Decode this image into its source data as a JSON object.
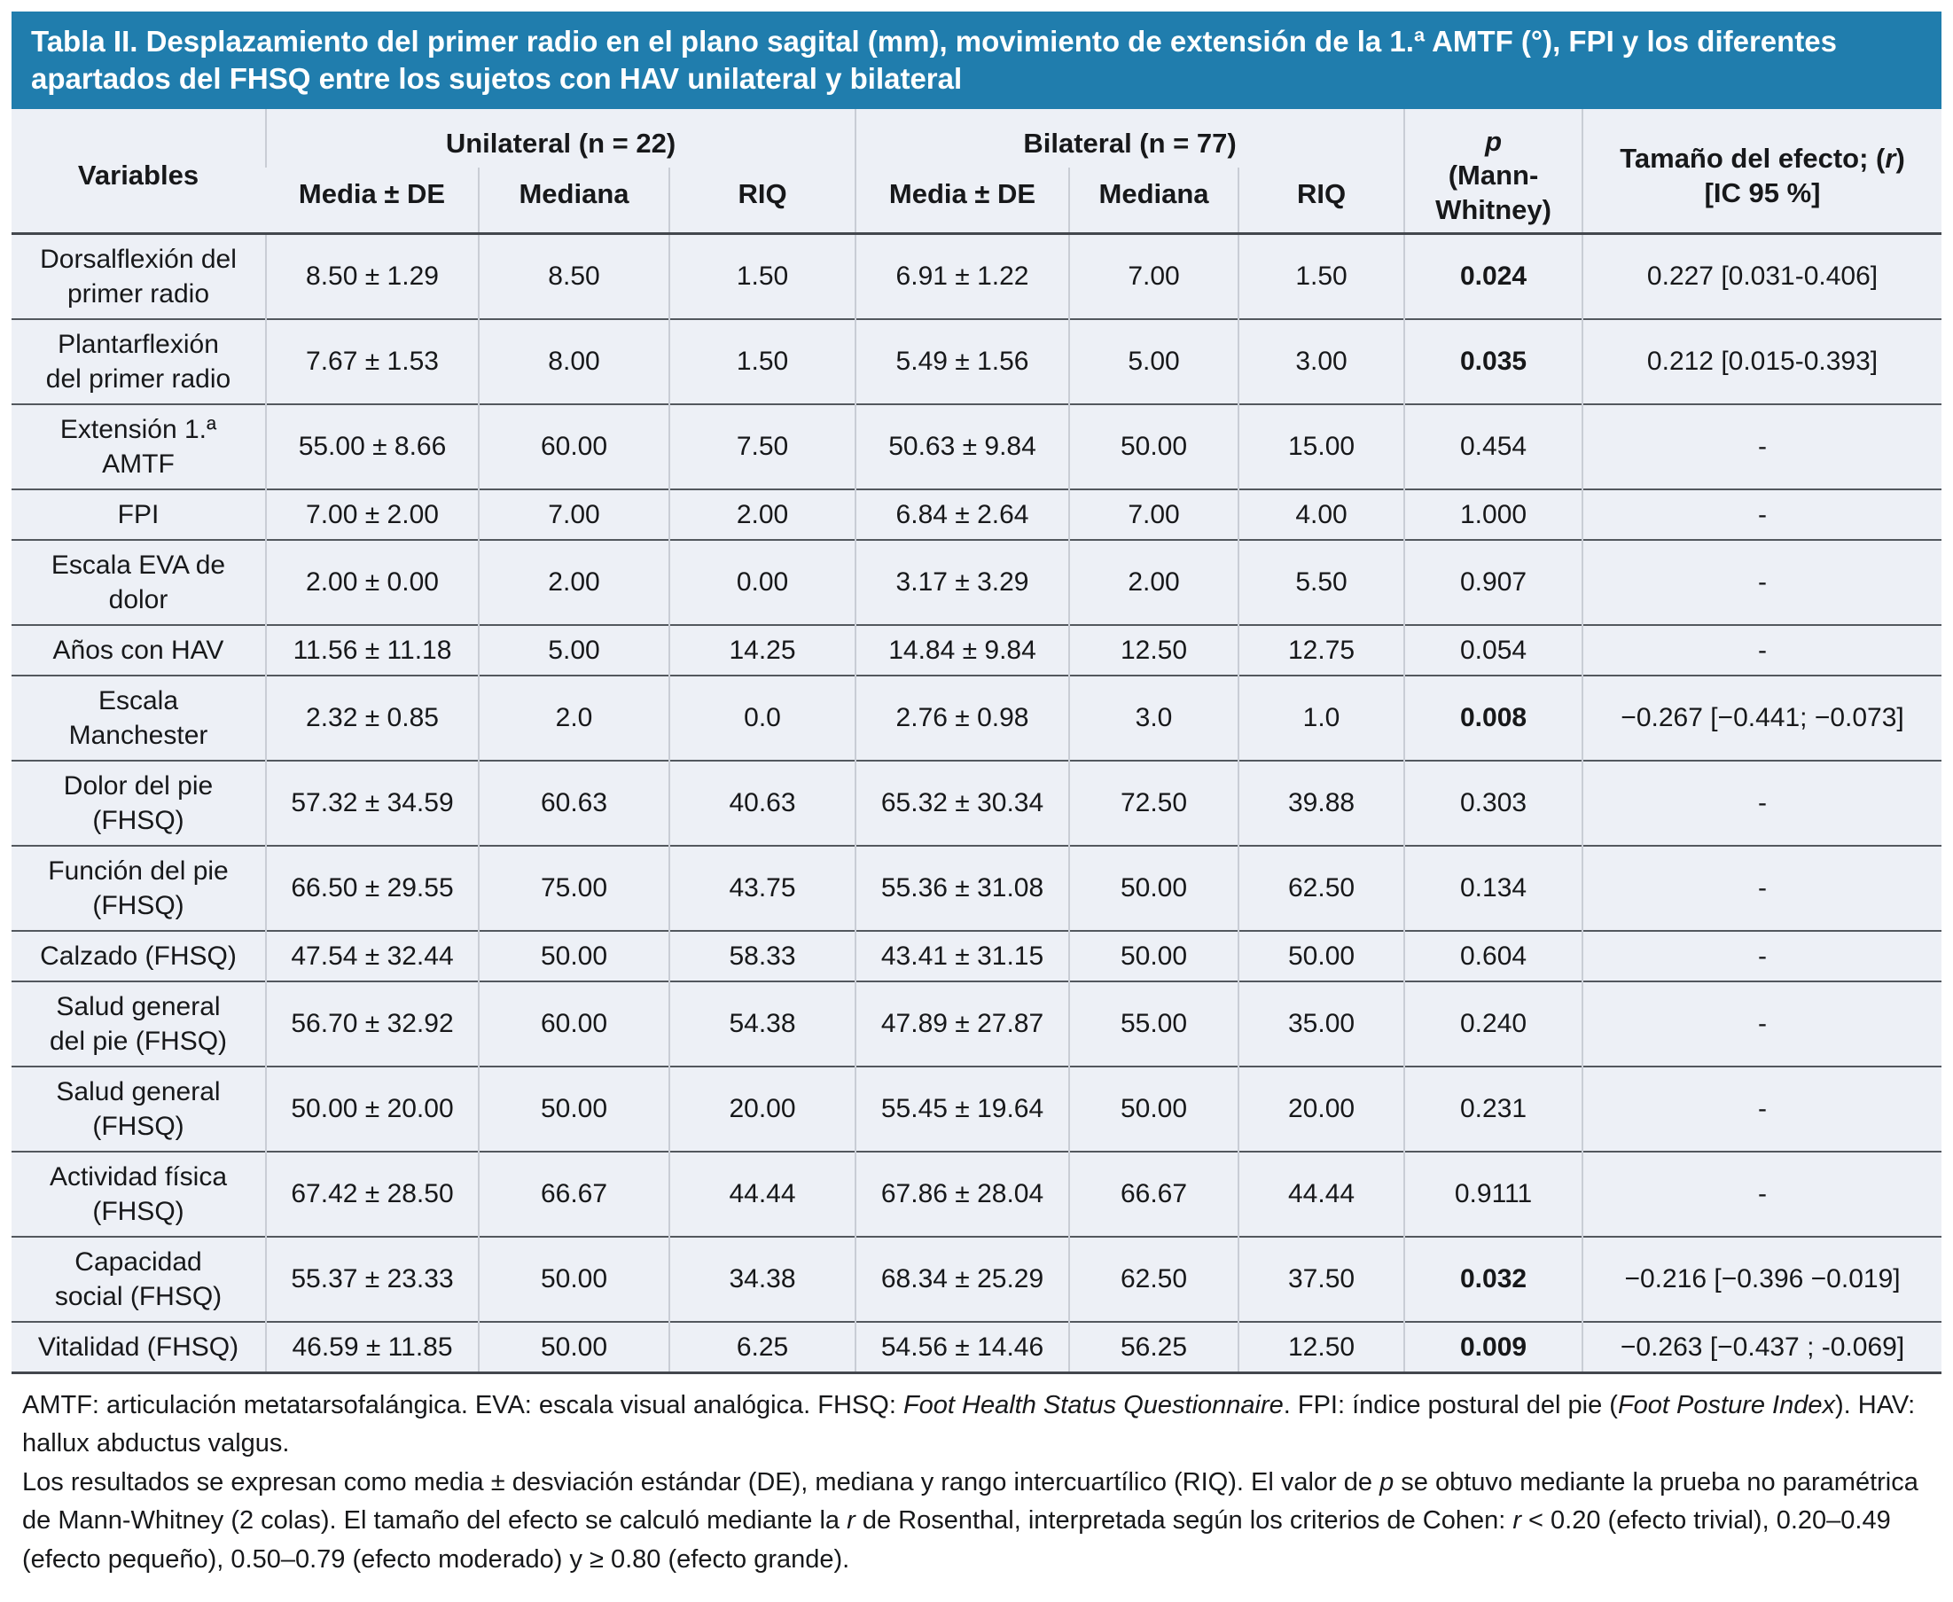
{
  "title": "Tabla II. Desplazamiento del primer radio en el plano sagital (mm), movimiento de extensión de la 1.ª AMTF (°), FPI y los diferentes apartados del FHSQ entre los sujetos con HAV unilateral y bilateral",
  "colors": {
    "header_blue": "#207dad",
    "table_background": "#edf0f6",
    "rule_dark": "#53585e",
    "rule_light": "#c9cdd5"
  },
  "header": {
    "variables": "Variables",
    "unilateral": "Unilateral (n = 22)",
    "bilateral": "Bilateral (n = 77)",
    "media_de": "Media ± DE",
    "mediana": "Mediana",
    "riq": "RIQ",
    "p_italic": "p",
    "p_rest": "(Mann-Whitney)",
    "effect_prefix": "Tamaño del efecto; (",
    "effect_r": "r",
    "effect_suffix": ")",
    "effect_line2": "[IC 95 %]"
  },
  "rows": [
    {
      "variable": "Dorsalflexión del\nprimer radio",
      "uni_media_de": "8.50 ± 1.29",
      "uni_mediana": "8.50",
      "uni_riq": "1.50",
      "bil_media_de": "6.91 ± 1.22",
      "bil_mediana": "7.00",
      "bil_riq": "1.50",
      "p": "0.024",
      "p_bold": true,
      "effect": "0.227 [0.031-0.406]"
    },
    {
      "variable": "Plantarflexión\ndel primer radio",
      "uni_media_de": "7.67 ± 1.53",
      "uni_mediana": "8.00",
      "uni_riq": "1.50",
      "bil_media_de": "5.49 ± 1.56",
      "bil_mediana": "5.00",
      "bil_riq": "3.00",
      "p": "0.035",
      "p_bold": true,
      "effect": "0.212 [0.015-0.393]"
    },
    {
      "variable": "Extensión 1.ª\nAMTF",
      "uni_media_de": "55.00 ± 8.66",
      "uni_mediana": "60.00",
      "uni_riq": "7.50",
      "bil_media_de": "50.63 ± 9.84",
      "bil_mediana": "50.00",
      "bil_riq": "15.00",
      "p": "0.454",
      "p_bold": false,
      "effect": "-"
    },
    {
      "variable": "FPI",
      "uni_media_de": "7.00 ± 2.00",
      "uni_mediana": "7.00",
      "uni_riq": "2.00",
      "bil_media_de": "6.84 ± 2.64",
      "bil_mediana": "7.00",
      "bil_riq": "4.00",
      "p": "1.000",
      "p_bold": false,
      "effect": "-"
    },
    {
      "variable": "Escala EVA de\ndolor",
      "uni_media_de": "2.00 ± 0.00",
      "uni_mediana": "2.00",
      "uni_riq": "0.00",
      "bil_media_de": "3.17 ± 3.29",
      "bil_mediana": "2.00",
      "bil_riq": "5.50",
      "p": "0.907",
      "p_bold": false,
      "effect": "-"
    },
    {
      "variable": "Años con HAV",
      "uni_media_de": "11.56 ± 11.18",
      "uni_mediana": "5.00",
      "uni_riq": "14.25",
      "bil_media_de": "14.84 ± 9.84",
      "bil_mediana": "12.50",
      "bil_riq": "12.75",
      "p": "0.054",
      "p_bold": false,
      "effect": "-"
    },
    {
      "variable": "Escala\nManchester",
      "uni_media_de": "2.32 ± 0.85",
      "uni_mediana": "2.0",
      "uni_riq": "0.0",
      "bil_media_de": "2.76 ± 0.98",
      "bil_mediana": "3.0",
      "bil_riq": "1.0",
      "p": "0.008",
      "p_bold": true,
      "effect": "−0.267 [−0.441; −0.073]"
    },
    {
      "variable": "Dolor del pie\n(FHSQ)",
      "uni_media_de": "57.32 ± 34.59",
      "uni_mediana": "60.63",
      "uni_riq": "40.63",
      "bil_media_de": "65.32 ± 30.34",
      "bil_mediana": "72.50",
      "bil_riq": "39.88",
      "p": "0.303",
      "p_bold": false,
      "effect": "-"
    },
    {
      "variable": "Función del pie\n(FHSQ)",
      "uni_media_de": "66.50 ± 29.55",
      "uni_mediana": "75.00",
      "uni_riq": "43.75",
      "bil_media_de": "55.36 ± 31.08",
      "bil_mediana": "50.00",
      "bil_riq": "62.50",
      "p": "0.134",
      "p_bold": false,
      "effect": "-"
    },
    {
      "variable": "Calzado (FHSQ)",
      "uni_media_de": "47.54 ± 32.44",
      "uni_mediana": "50.00",
      "uni_riq": "58.33",
      "bil_media_de": "43.41 ± 31.15",
      "bil_mediana": "50.00",
      "bil_riq": "50.00",
      "p": "0.604",
      "p_bold": false,
      "effect": "-"
    },
    {
      "variable": "Salud general\ndel pie (FHSQ)",
      "uni_media_de": "56.70 ± 32.92",
      "uni_mediana": "60.00",
      "uni_riq": "54.38",
      "bil_media_de": "47.89 ± 27.87",
      "bil_mediana": "55.00",
      "bil_riq": "35.00",
      "p": "0.240",
      "p_bold": false,
      "effect": "-"
    },
    {
      "variable": "Salud general\n(FHSQ)",
      "uni_media_de": "50.00 ± 20.00",
      "uni_mediana": "50.00",
      "uni_riq": "20.00",
      "bil_media_de": "55.45 ± 19.64",
      "bil_mediana": "50.00",
      "bil_riq": "20.00",
      "p": "0.231",
      "p_bold": false,
      "effect": "-"
    },
    {
      "variable": "Actividad física\n(FHSQ)",
      "uni_media_de": "67.42 ± 28.50",
      "uni_mediana": "66.67",
      "uni_riq": "44.44",
      "bil_media_de": "67.86 ± 28.04",
      "bil_mediana": "66.67",
      "bil_riq": "44.44",
      "p": "0.9111",
      "p_bold": false,
      "effect": "-"
    },
    {
      "variable": "Capacidad\nsocial (FHSQ)",
      "uni_media_de": "55.37 ± 23.33",
      "uni_mediana": "50.00",
      "uni_riq": "34.38",
      "bil_media_de": "68.34 ± 25.29",
      "bil_mediana": "62.50",
      "bil_riq": "37.50",
      "p": "0.032",
      "p_bold": true,
      "effect": "−0.216 [−0.396 −0.019]"
    },
    {
      "variable": "Vitalidad (FHSQ)",
      "uni_media_de": "46.59 ± 11.85",
      "uni_mediana": "50.00",
      "uni_riq": "6.25",
      "bil_media_de": "54.56 ± 14.46",
      "bil_mediana": "56.25",
      "bil_riq": "12.50",
      "p": "0.009",
      "p_bold": true,
      "effect": "−0.263 [−0.437 ; -0.069]"
    }
  ],
  "footnotes": [
    [
      {
        "t": "AMTF: articulación metatarsofalángica. EVA: escala visual analógica. FHSQ: ",
        "i": false
      },
      {
        "t": "Foot Health Status Questionnaire",
        "i": true
      },
      {
        "t": ". FPI: índice postural del pie (",
        "i": false
      },
      {
        "t": "Foot Posture Index",
        "i": true
      },
      {
        "t": "). HAV: hallux abductus valgus.",
        "i": false
      }
    ],
    [
      {
        "t": "Los resultados se expresan como media ± desviación estándar (DE), mediana y rango intercuartílico (RIQ). El valor de ",
        "i": false
      },
      {
        "t": "p",
        "i": true
      },
      {
        "t": " se obtuvo mediante la prueba no paramétrica de Mann-Whitney (2 colas). El tamaño del efecto se calculó mediante la ",
        "i": false
      },
      {
        "t": "r",
        "i": true
      },
      {
        "t": " de Rosenthal, interpretada según los criterios de Cohen: ",
        "i": false
      },
      {
        "t": "r",
        "i": true
      },
      {
        "t": " < 0.20 (efecto trivial), 0.20–0.49 (efecto pequeño), 0.50–0.79 (efecto moderado) y ≥ 0.80 (efecto grande).",
        "i": false
      }
    ]
  ]
}
